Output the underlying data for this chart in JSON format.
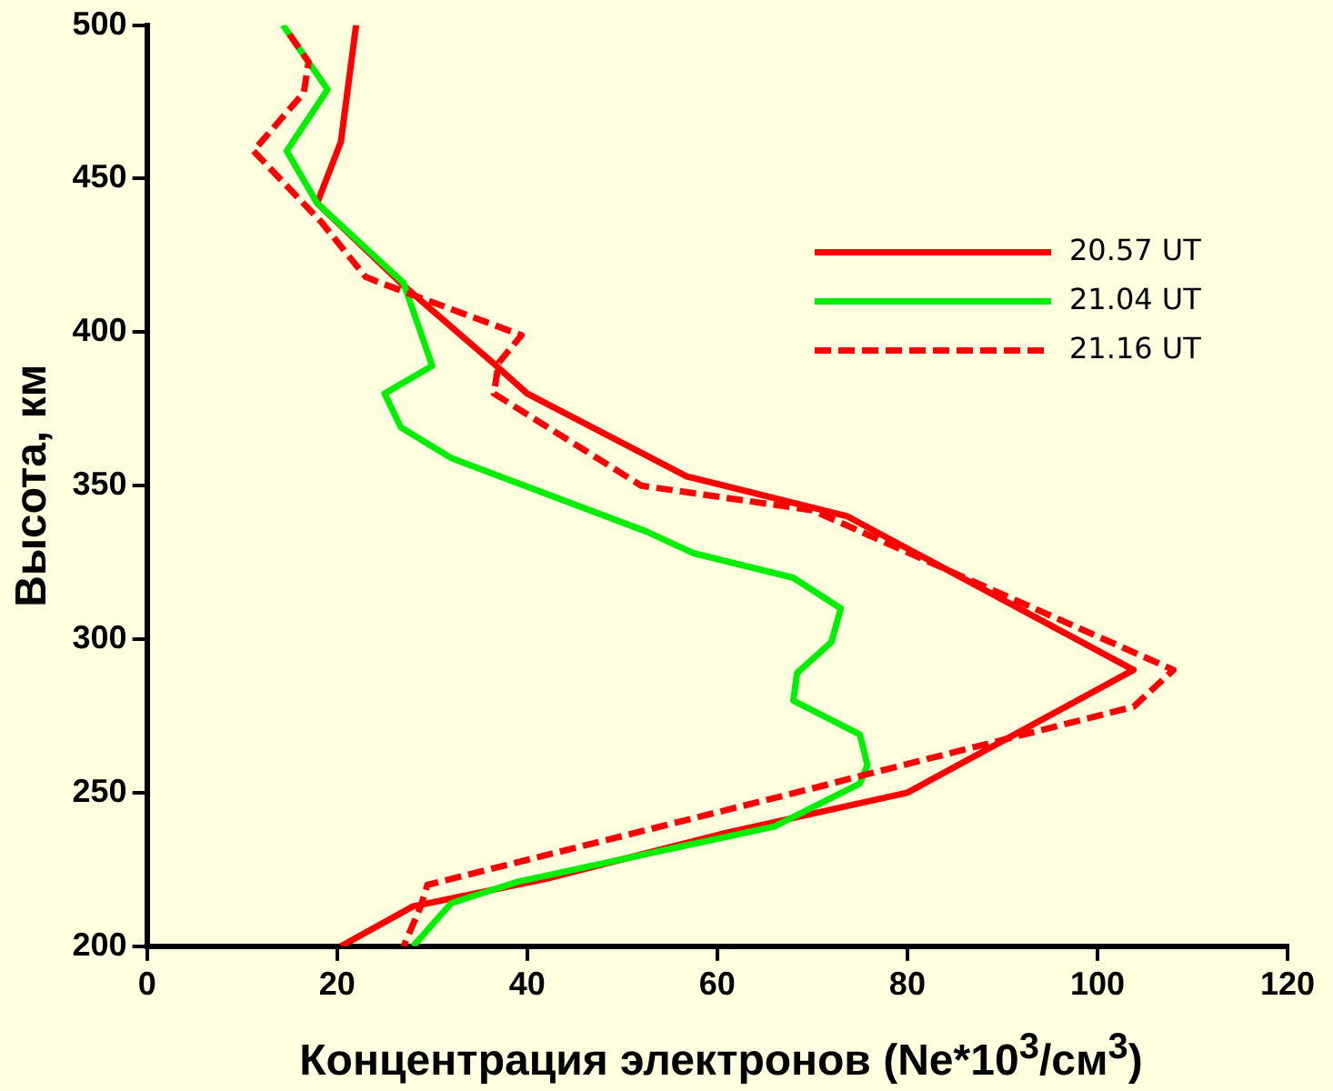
{
  "chart_data": {
    "type": "line",
    "xlabel": "Концентрация электронов (Ne*10$^{3}$/см$^{3}$)",
    "ylabel": "Высота, км",
    "xlim": [
      0,
      120
    ],
    "xticks": [
      0,
      20,
      40,
      60,
      80,
      100,
      120
    ],
    "ylim": [
      200,
      500
    ],
    "yticks": [
      200,
      250,
      300,
      350,
      400,
      450,
      500
    ],
    "legend": "top right",
    "grid": false,
    "marker": "none",
    "series": [
      {
        "name": "20.57 UT",
        "color": "#ff0000",
        "line_style": "solid",
        "x": [
          22,
          20.4,
          17.9,
          26.7,
          36.4,
          40,
          56.8,
          73.7,
          103.8,
          80,
          61,
          42,
          28,
          20.4
        ],
        "values": [
          500,
          462,
          442,
          416,
          390,
          380,
          353,
          340,
          290,
          250,
          237,
          222,
          213,
          200
        ]
      },
      {
        "name": "21.04 UT",
        "color": "#00ee00",
        "line_style": "solid",
        "x": [
          14.3,
          19,
          14.7,
          17.9,
          27,
          30,
          25,
          26.7,
          32,
          52.6,
          57.5,
          68,
          73,
          72,
          68.4,
          68,
          75,
          75.8,
          75,
          66,
          39,
          32,
          28
        ],
        "values": [
          500,
          479,
          459,
          442,
          416,
          389,
          380,
          369,
          359,
          335,
          328,
          320,
          310,
          299,
          289,
          280,
          269,
          259,
          253,
          239,
          221,
          214,
          200
        ]
      },
      {
        "name": "21.16 UT",
        "color": "#ff0000",
        "line_style": "dashed",
        "x": [
          15,
          17,
          16.5,
          11.2,
          18.3,
          23,
          24.6,
          39.4,
          37,
          36.5,
          52,
          70,
          108,
          103.8,
          77,
          69.5,
          29.5,
          28.8,
          27
        ],
        "values": [
          497,
          488,
          478,
          459,
          436,
          418,
          416,
          399,
          390,
          380,
          350,
          342,
          290,
          278,
          257,
          251,
          220,
          213,
          200
        ]
      }
    ]
  }
}
